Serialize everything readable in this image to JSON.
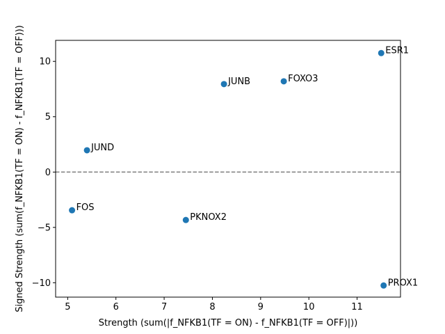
{
  "chart_data": {
    "type": "scatter",
    "title": "",
    "xlabel": "Strength (sum(|f_NFKB1(TF = ON) - f_NFKB1(TF = OFF)|))",
    "ylabel": "Signed Strength (sum(f_NFKB1(TF = ON) - f_NFKB1(TF = OFF)))",
    "xlim": [
      4.75,
      11.9
    ],
    "ylim": [
      -11.3,
      11.9
    ],
    "xticks": [
      5,
      6,
      7,
      8,
      9,
      10,
      11
    ],
    "yticks": [
      -10,
      -5,
      0,
      5,
      10
    ],
    "grid": false,
    "reference_line": {
      "y": 0,
      "style": "dashed",
      "color": "#808080"
    },
    "marker_color": "#1f77b4",
    "points": [
      {
        "label": "ESR1",
        "x": 11.5,
        "y": 10.75
      },
      {
        "label": "FOXO3",
        "x": 9.48,
        "y": 8.2
      },
      {
        "label": "JUNB",
        "x": 8.24,
        "y": 7.95
      },
      {
        "label": "JUND",
        "x": 5.4,
        "y": 1.97
      },
      {
        "label": "FOS",
        "x": 5.09,
        "y": -3.45
      },
      {
        "label": "PKNOX2",
        "x": 7.45,
        "y": -4.33
      },
      {
        "label": "PROX1",
        "x": 11.55,
        "y": -10.25
      }
    ]
  }
}
